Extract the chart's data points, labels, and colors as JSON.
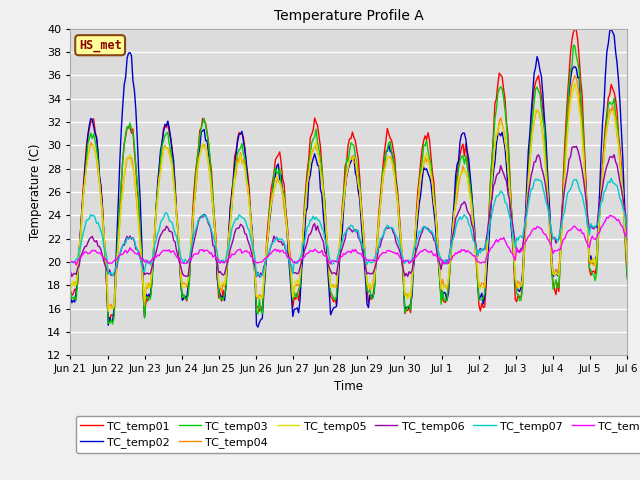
{
  "title": "Temperature Profile A",
  "xlabel": "Time",
  "ylabel": "Temperature (C)",
  "ylim": [
    12,
    40
  ],
  "yticks": [
    12,
    14,
    16,
    18,
    20,
    22,
    24,
    26,
    28,
    30,
    32,
    34,
    36,
    38,
    40
  ],
  "bg_color": "#dcdcdc",
  "fig_color": "#f0f0f0",
  "annotation_text": "HS_met",
  "annotation_bg": "#ffff99",
  "annotation_edge": "#8b4513",
  "annotation_text_color": "#8b0000",
  "series_colors": {
    "TC_temp01": "#ff0000",
    "TC_temp02": "#0000cc",
    "TC_temp03": "#00cc00",
    "TC_temp04": "#ff8800",
    "TC_temp05": "#dddd00",
    "TC_temp06": "#9900aa",
    "TC_temp07": "#00cccc",
    "TC_temp08": "#ff00ff"
  },
  "xtick_labels": [
    "Jun 21",
    "Jun 22",
    "Jun 23",
    "Jun 24",
    "Jun 25",
    "Jun 26",
    "Jun 27",
    "Jun 28",
    "Jun 29",
    "Jun 30",
    "Jul 1",
    "Jul 2",
    "Jul 3",
    "Jul 4",
    "Jul 5",
    "Jul 6"
  ],
  "line_width": 1.0
}
